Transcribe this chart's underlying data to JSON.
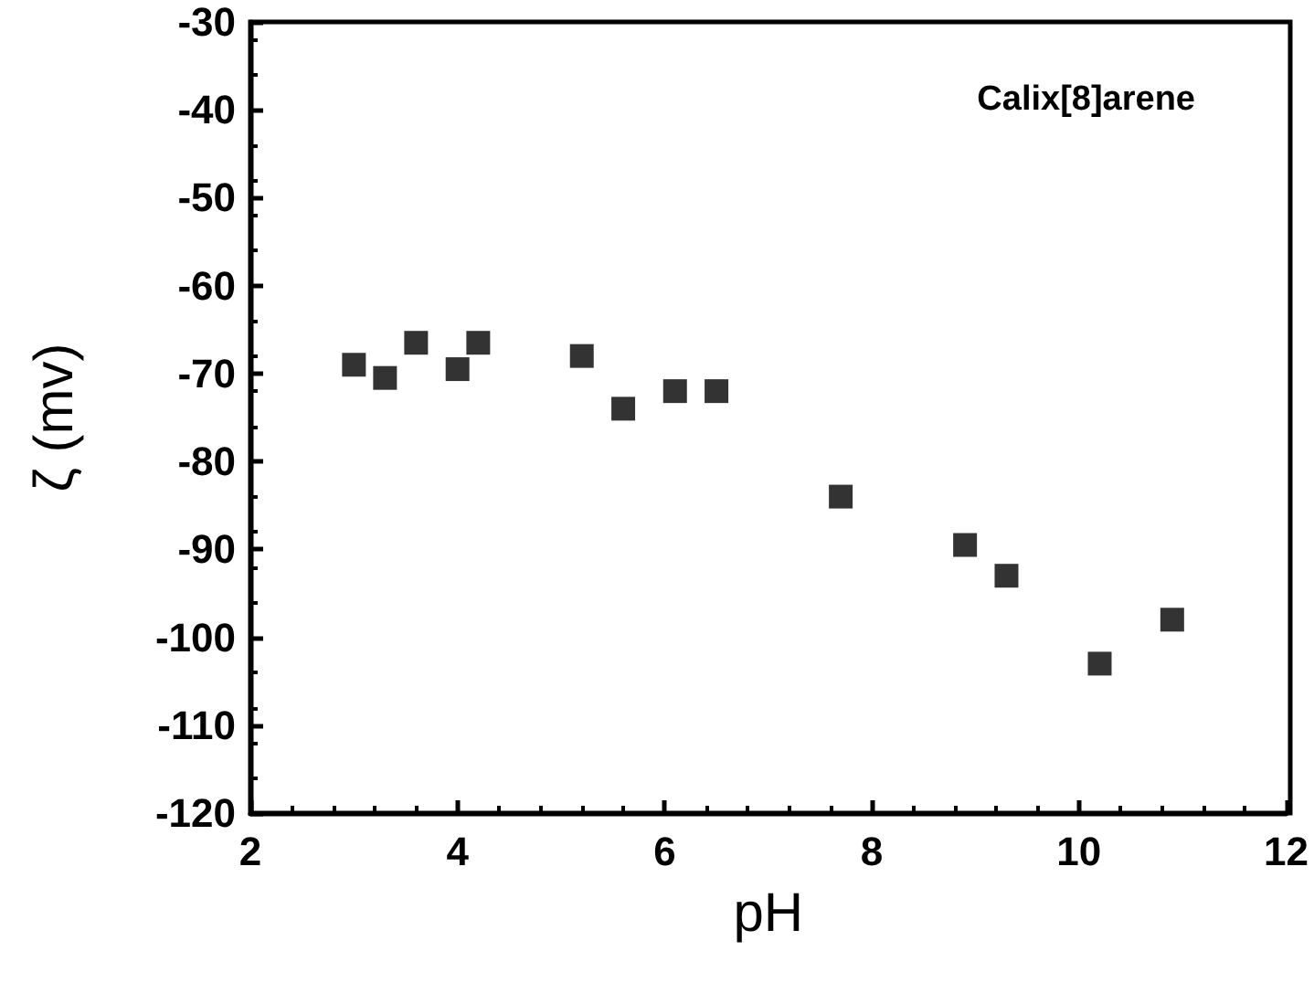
{
  "chart_data": {
    "type": "scatter",
    "xlabel": "pH",
    "ylabel": "ζ (mv)",
    "annotations": [
      "Calix[8]arene"
    ],
    "x": [
      3,
      3.3,
      3.6,
      4,
      4.2,
      5.2,
      5.6,
      6.1,
      6.5,
      7.7,
      8.9,
      9.3,
      10.2,
      10.9
    ],
    "series": [
      {
        "color": "#000000",
        "values": [
          -69,
          -70.5,
          -66.5,
          -69.5,
          -66.5,
          -68,
          -74,
          -72,
          -72,
          -84,
          -89.5,
          -93,
          -103,
          -98
        ]
      }
    ],
    "xlim": [
      2,
      12
    ],
    "xticks": [
      2,
      4,
      6,
      8,
      10,
      12
    ],
    "ylim": [
      -120,
      -30
    ],
    "yticks": [
      -120,
      -110,
      -100,
      -90,
      -80,
      -70,
      -60,
      -50,
      -40,
      -30
    ],
    "marker": "square",
    "grid": false
  }
}
